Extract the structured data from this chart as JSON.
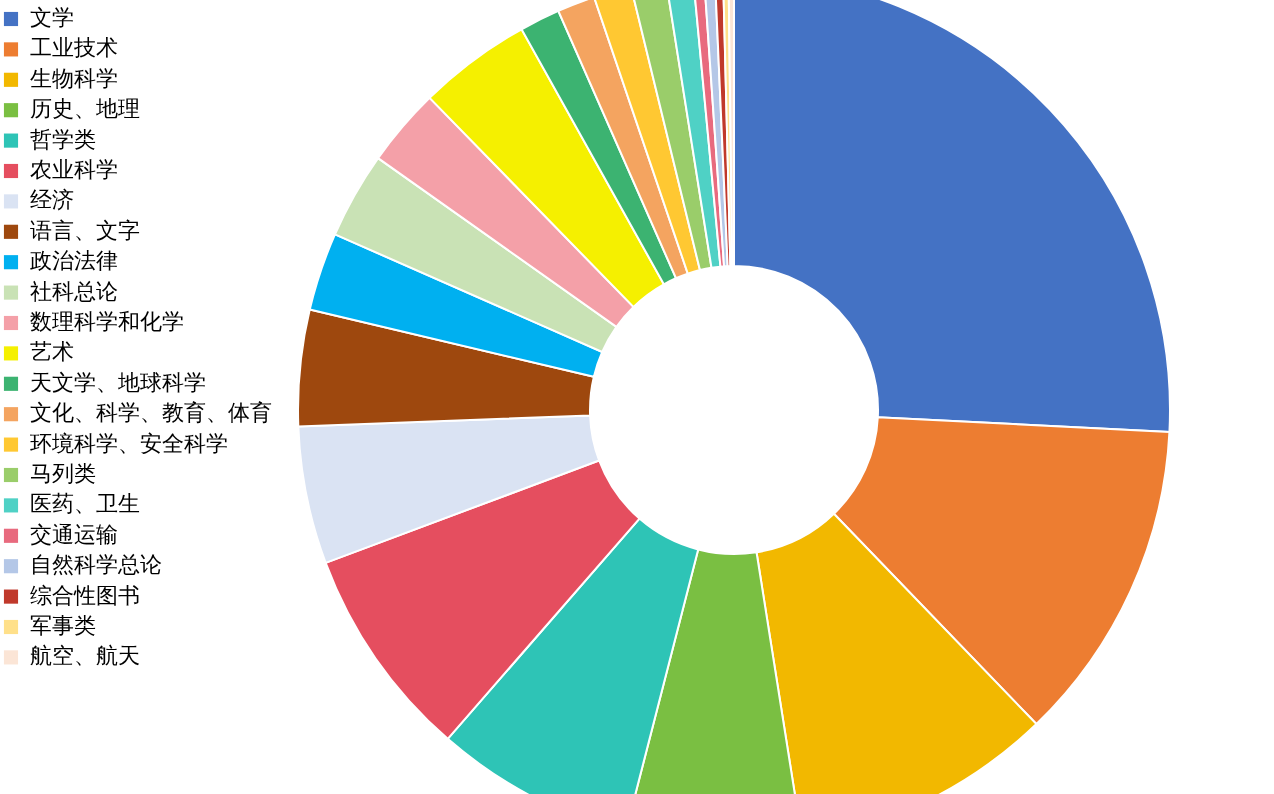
{
  "chart_data": {
    "type": "donut",
    "legend": "left",
    "categories": [
      "文学",
      "工业技术",
      "生物科学",
      "历史、地理",
      "哲学类",
      "农业科学",
      "经济",
      "语言、文字",
      "政治法律",
      "社科总论",
      "数理科学和化学",
      "艺术",
      "天文学、地球科学",
      "文化、科学、教育、体育",
      "环境科学、安全科学",
      "马列类",
      "医药、卫生",
      "交通运输",
      "自然科学总论",
      "综合性图书",
      "军事类",
      "航空、航天"
    ],
    "values": [
      25.8,
      12,
      9.7,
      6.5,
      7.4,
      7.9,
      5.1,
      4.3,
      2.9,
      3.2,
      2.9,
      4.2,
      1.5,
      1.4,
      1.4,
      1.3,
      1.0,
      0.4,
      0.4,
      0.3,
      0.2,
      0.2
    ],
    "colors": [
      "#4472c4",
      "#ed7d31",
      "#f2b800",
      "#7abf42",
      "#2ec4b6",
      "#e54e5f",
      "#dae3f3",
      "#9e480e",
      "#00b0f0",
      "#c9e2b5",
      "#f4a0a8",
      "#f5f000",
      "#3cb371",
      "#f4a460",
      "#ffc832",
      "#9acd6a",
      "#4fd1c5",
      "#e86a7e",
      "#b4c7e7",
      "#c0392b",
      "#ffe08a",
      "#fbe5d6"
    ]
  }
}
